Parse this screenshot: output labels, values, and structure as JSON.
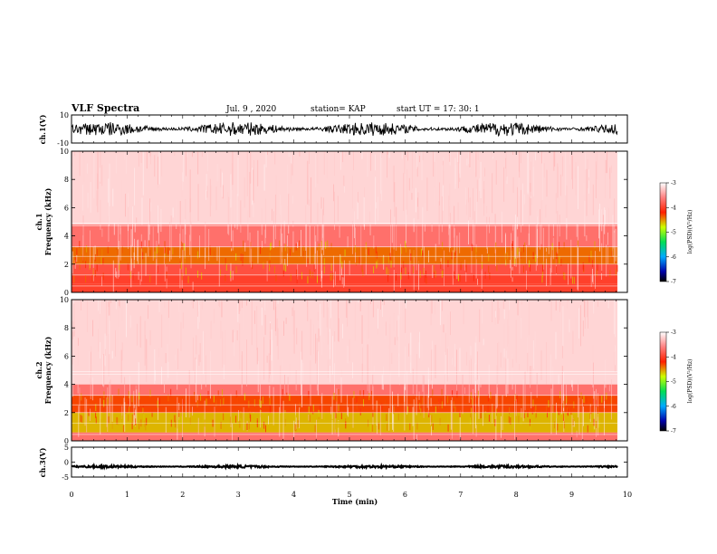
{
  "header": {
    "title": "VLF Spectra",
    "date": "Jul. 9 , 2020",
    "station": "station= KAP",
    "start": "start UT = 17: 30: 1"
  },
  "colors": {
    "background": "#ffffff",
    "waveform": "#000000",
    "spec_low": "#ffffff",
    "spec_mid": "#ff2020",
    "spec_high": "#ffff00",
    "spec_top": "#33cc33"
  },
  "chart_data": [
    {
      "type": "line",
      "panel": "ch1-waveform",
      "ylabel": "ch.1(V)",
      "ylim": [
        -10,
        10
      ],
      "yticks": [
        "10",
        "-10"
      ],
      "x_range_min": [
        0,
        10
      ],
      "description_values": {
        "mean": 0,
        "typical_amplitude": 5
      }
    },
    {
      "type": "heatmap",
      "panel": "ch1-spectrogram",
      "ylabel": "ch.1 Frequency (kHz)",
      "ylim": [
        0,
        10
      ],
      "yticks": [
        "0",
        "2",
        "4",
        "6",
        "8",
        "10"
      ],
      "bands_khz": [
        {
          "from": 0,
          "to": 0.6,
          "level": -4
        },
        {
          "from": 0.6,
          "to": 1.2,
          "level": -4
        },
        {
          "from": 1.2,
          "to": 2.0,
          "level": -3.9
        },
        {
          "from": 2.0,
          "to": 3.2,
          "level": -4.4
        },
        {
          "from": 3.2,
          "to": 4.8,
          "level": -3.7
        },
        {
          "from": 4.8,
          "to": 10,
          "level": -3.2
        }
      ],
      "colorbar": {
        "label": "log(PSD)(V²/Hz)",
        "ticks": [
          "-3",
          "-4",
          "-5",
          "-6",
          "-7"
        ],
        "range": [
          -7,
          -3
        ]
      }
    },
    {
      "type": "heatmap",
      "panel": "ch2-spectrogram",
      "ylabel": "ch.2 Frequency (kHz)",
      "ylim": [
        0,
        10
      ],
      "yticks": [
        "0",
        "2",
        "4",
        "6",
        "8",
        "10"
      ],
      "bands_khz": [
        {
          "from": 0,
          "to": 0.6,
          "level": -3.7
        },
        {
          "from": 0.6,
          "to": 2.0,
          "level": -4.6
        },
        {
          "from": 2.0,
          "to": 3.2,
          "level": -4.3
        },
        {
          "from": 3.2,
          "to": 4.0,
          "level": -3.7
        },
        {
          "from": 4.0,
          "to": 10,
          "level": -3.2
        }
      ],
      "colorbar": {
        "label": "log(PSD)(V²/Hz)",
        "ticks": [
          "-3",
          "-4",
          "-5",
          "-6",
          "-7"
        ],
        "range": [
          -7,
          -3
        ]
      }
    },
    {
      "type": "line",
      "panel": "ch3-waveform",
      "ylabel": "ch.3(V)",
      "ylim": [
        -5,
        5
      ],
      "yticks": [
        "5",
        "0",
        "-5"
      ],
      "description_values": {
        "mean": -1.5,
        "typical_amplitude": 0.4
      }
    }
  ],
  "xaxis": {
    "label": "Time (min)",
    "range": [
      0,
      10
    ],
    "ticks": [
      "0",
      "1",
      "2",
      "3",
      "4",
      "5",
      "6",
      "7",
      "8",
      "9",
      "10"
    ],
    "data_end": 9.82
  }
}
